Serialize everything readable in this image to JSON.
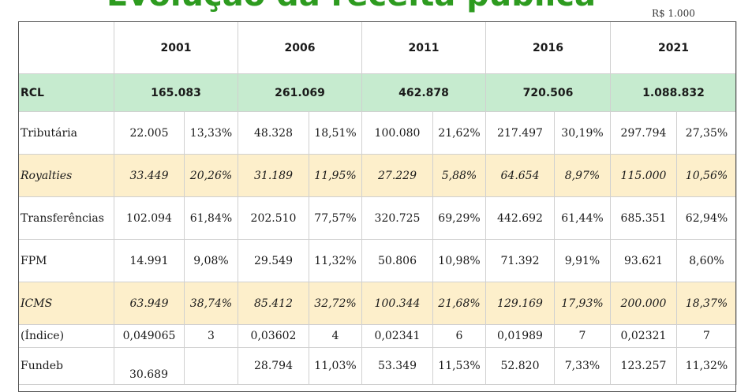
{
  "title": "Evolução da receita pública",
  "unit": "R$ 1.000",
  "years": [
    "2001",
    "2006",
    "2011",
    "2016",
    "2021"
  ],
  "rcl": {
    "label": "RCL",
    "values": [
      "165.083",
      "261.069",
      "462.878",
      "720.506",
      "1.088.832"
    ]
  },
  "rows": [
    {
      "label": "Tributária",
      "cells": [
        "22.005",
        "13,33%",
        "48.328",
        "18,51%",
        "100.080",
        "21,62%",
        "217.497",
        "30,19%",
        "297.794",
        "27,35%"
      ]
    },
    {
      "label": "Royalties",
      "cells": [
        "33.449",
        "20,26%",
        "31.189",
        "11,95%",
        "27.229",
        "5,88%",
        "64.654",
        "8,97%",
        "115.000",
        "10,56%"
      ]
    },
    {
      "label": "Transferências",
      "cells": [
        "102.094",
        "61,84%",
        "202.510",
        "77,57%",
        "320.725",
        "69,29%",
        "442.692",
        "61,44%",
        "685.351",
        "62,94%"
      ]
    },
    {
      "label": "FPM",
      "cells": [
        "14.991",
        "9,08%",
        "29.549",
        "11,32%",
        "50.806",
        "10,98%",
        "71.392",
        "9,91%",
        "93.621",
        "8,60%"
      ]
    },
    {
      "label": "ICMS",
      "cells": [
        "63.949",
        "38,74%",
        "85.412",
        "32,72%",
        "100.344",
        "21,68%",
        "129.169",
        "17,93%",
        "200.000",
        "18,37%"
      ]
    },
    {
      "label": "(Índice)",
      "cells": [
        "0,049065",
        "3",
        "0,03602",
        "4",
        "0,02341",
        "6",
        "0,01989",
        "7",
        "0,02321",
        "7"
      ]
    },
    {
      "label": "Fundeb",
      "cells": [
        "",
        "",
        "28.794",
        "11,03%",
        "53.349",
        "11,53%",
        "52.820",
        "7,33%",
        "123.257",
        "11,32%"
      ]
    }
  ],
  "partial_value": "30.689"
}
